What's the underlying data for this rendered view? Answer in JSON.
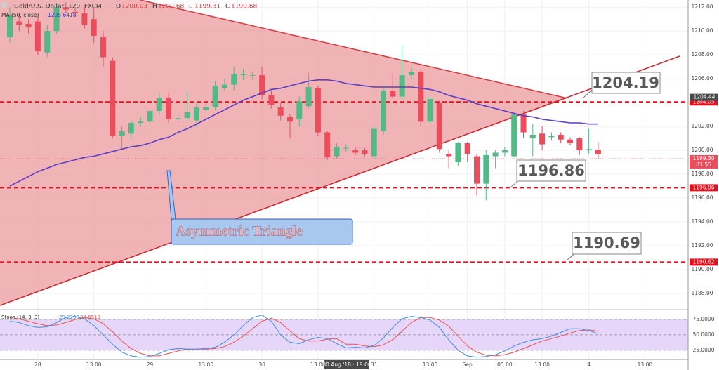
{
  "header": {
    "symbol": "Gold/U.S. Dollar, 120, FXCM",
    "ohlc": [
      {
        "key": "O",
        "value": "1200.03"
      },
      {
        "key": "H",
        "value": "1200.68"
      },
      {
        "key": "L",
        "value": "1199.31"
      },
      {
        "key": "C",
        "value": "1199.68"
      }
    ]
  },
  "chart_data": {
    "type": "candlestick",
    "categories": [
      null,
      null,
      null,
      "28",
      null,
      null,
      null,
      null,
      null,
      "13:00",
      null,
      null,
      null,
      null,
      null,
      "29",
      null,
      null,
      null,
      null,
      null,
      "13:00",
      null,
      null,
      null,
      null,
      null,
      "30",
      null,
      null,
      null,
      null,
      null,
      "13:00",
      null,
      null,
      null,
      null,
      null,
      "31",
      null,
      null,
      null,
      null,
      null,
      "13:00",
      null,
      null,
      null,
      "Sep",
      null,
      null,
      null,
      "05:00",
      null,
      null,
      null,
      "13:00",
      null,
      null,
      null,
      null,
      "4",
      null,
      null,
      null,
      null,
      null,
      "13:00"
    ],
    "open": [
      1209.5,
      1210.8,
      1210.6,
      1210.8,
      1208.2,
      1210,
      1212,
      1211.6,
      1211.5,
      1211,
      1209.5,
      1207.5,
      1201.2,
      1201.4,
      1202.3,
      1202.4,
      1203.3,
      1204.4,
      1202.6,
      1202.7,
      1202.5,
      1203.4,
      1203.6,
      1205.2,
      1205.5,
      1206.3,
      1206.3,
      1206.3,
      1204.6,
      1203.6,
      1202.8,
      1202.6,
      1203.7,
      1205.2,
      1201.5,
      1199.5,
      1200.2,
      1200,
      1200,
      1199.5,
      1201.6,
      1205,
      1204.5,
      1206.3,
      1206.6,
      1202.4,
      1204,
      1199.7,
      1199,
      1200.6,
      1199.5,
      1197.2,
      1199.5,
      1199.8,
      1199.5,
      1203,
      1201,
      1201.4,
      1201.1,
      1201.3,
      1200.9,
      1201,
      1200.1,
      1200.03,
      null,
      null,
      null,
      null,
      null
    ],
    "high": [
      1212,
      1211.5,
      1211,
      1211.2,
      1210.5,
      1212.3,
      1212.4,
      1212,
      1212,
      1212,
      1210,
      1207.8,
      1202,
      1202.5,
      1202.8,
      1204,
      1204.8,
      1204.8,
      1203,
      1205,
      1204,
      1204,
      1205.8,
      1206,
      1207,
      1206.8,
      1206.6,
      1207,
      1205,
      1204,
      1203,
      1204.5,
      1206.5,
      1205.4,
      1201.6,
      1200.6,
      1200.5,
      1200.3,
      1200.2,
      1202,
      1205.4,
      1206.5,
      1208.8,
      1207,
      1206.8,
      1204.5,
      1204.2,
      1200,
      1200.7,
      1200.7,
      1199.7,
      1200,
      1200,
      1200.3,
      1203.2,
      1203.3,
      1202.2,
      1202,
      1201.5,
      1201.5,
      1201.1,
      1201.1,
      1201.8,
      1200.68,
      null,
      null,
      null,
      null,
      null
    ],
    "low": [
      1209,
      1210,
      1209.8,
      1208,
      1207.8,
      1209.8,
      1211.5,
      1211.2,
      1210.2,
      1209,
      1207,
      1201,
      1200,
      1201,
      1202,
      1202,
      1203,
      1202.3,
      1202.3,
      1202.4,
      1202,
      1203,
      1203.4,
      1205,
      1205,
      1205.9,
      1205.9,
      1204.3,
      1203.5,
      1202.5,
      1201,
      1202,
      1203.5,
      1201.2,
      1199.2,
      1199.3,
      1199.9,
      1199.6,
      1199.5,
      1199.3,
      1201.3,
      1204.3,
      1204.3,
      1206,
      1202,
      1202.3,
      1199.8,
      1198.5,
      1198.7,
      1199,
      1196.2,
      1195.8,
      1198.5,
      1199.5,
      1199.4,
      1201,
      1199.5,
      1200,
      1200.8,
      1200.6,
      1200.4,
      1199.6,
      1199.7,
      1199.31,
      null,
      null,
      null,
      null,
      null
    ],
    "close": [
      1211.3,
      1210.5,
      1210.3,
      1208.3,
      1210,
      1212,
      1211.8,
      1211.5,
      1210.5,
      1209.6,
      1207.8,
      1201.2,
      1201.6,
      1202.3,
      1202.4,
      1203.3,
      1204.4,
      1202.6,
      1202.7,
      1203.2,
      1203.6,
      1203.6,
      1205.4,
      1205.5,
      1206.4,
      1206.4,
      1206.3,
      1204.6,
      1203.8,
      1202.9,
      1202.4,
      1204.1,
      1205.3,
      1201.5,
      1199.4,
      1200.3,
      1200.2,
      1199.8,
      1199.7,
      1201.8,
      1205,
      1204.5,
      1206.3,
      1206.6,
      1202.4,
      1204.3,
      1200.1,
      1199.5,
      1200.6,
      1199.7,
      1197.2,
      1199.6,
      1199.8,
      1200,
      1203,
      1201.5,
      1201.3,
      1200.5,
      1201.2,
      1200.9,
      1200.6,
      1200,
      1200.1,
      1199.68,
      null,
      null,
      null,
      null,
      null
    ],
    "up_color": "#53b987",
    "down_color": "#eb4d5c",
    "ma": {
      "name": "MA (50, close)",
      "value_label": "1205.6418",
      "color": "#5b3fc4",
      "values": [
        1197.0,
        1197.4,
        1197.8,
        1198.2,
        1198.5,
        1198.8,
        1199.0,
        1199.2,
        1199.4,
        1199.5,
        1199.7,
        1199.9,
        1200.1,
        1200.3,
        1200.4,
        1200.6,
        1200.9,
        1201.1,
        1201.5,
        1201.8,
        1202.2,
        1202.6,
        1203.0,
        1203.4,
        1203.8,
        1204.2,
        1204.5,
        1204.8,
        1205.1,
        1205.2,
        1205.4,
        1205.6,
        1205.8,
        1205.9,
        1205.9,
        1205.8,
        1205.6,
        1205.5,
        1205.4,
        1205.3,
        1205.3,
        1205.3,
        1205.3,
        1205.3,
        1205.2,
        1205.1,
        1204.9,
        1204.6,
        1204.4,
        1204.2,
        1203.9,
        1203.7,
        1203.5,
        1203.3,
        1203.1,
        1202.9,
        1202.8,
        1202.6,
        1202.5,
        1202.4,
        1202.3,
        1202.3,
        1202.2,
        1202.2,
        null,
        null,
        null,
        null,
        null
      ]
    },
    "ylim": [
      1186.7,
      1212.6
    ],
    "yticks": [
      {
        "value": 1212,
        "label": "1212.00"
      },
      {
        "value": 1210,
        "label": "1210.00"
      },
      {
        "value": 1208,
        "label": "1208.00"
      },
      {
        "value": 1206,
        "label": "1206.00"
      },
      {
        "value": 1202,
        "label": "1202.00"
      },
      {
        "value": 1200,
        "label": "1200.00"
      },
      {
        "value": 1198,
        "label": "1198.00"
      },
      {
        "value": 1196,
        "label": "1196.00"
      },
      {
        "value": 1194,
        "label": "1194.00"
      },
      {
        "value": 1192,
        "label": "1192.00"
      },
      {
        "value": 1190,
        "label": "1190.00"
      },
      {
        "value": 1188,
        "label": "1188.00"
      }
    ],
    "levels": [
      1204.05,
      1196.86,
      1190.62
    ],
    "level_color": "#e0121f",
    "last_price": {
      "value": 1199.3,
      "label": "1199.30",
      "countdown": "03:55"
    },
    "crosshair": {
      "price": 1204.44,
      "time": "30 Aug '18 · 19:00"
    },
    "callouts": [
      "1204.19",
      "1196.86",
      "1190.69"
    ],
    "pattern_label": "Asymmetric Triangle",
    "stochastic": {
      "title": "Stoch (14, 3, 3)",
      "k_label": "29.2263",
      "d_label": "34.6519",
      "k_color": "#3d8de0",
      "d_color": "#ee5050",
      "k": [
        72,
        70,
        65,
        62,
        63,
        70,
        78,
        80,
        76,
        65,
        50,
        35,
        22,
        16,
        14,
        15,
        20,
        26,
        28,
        27,
        27,
        28,
        30,
        38,
        50,
        65,
        78,
        82,
        72,
        50,
        38,
        36,
        42,
        46,
        44,
        36,
        29,
        30,
        29,
        33,
        45,
        62,
        76,
        80,
        78,
        74,
        62,
        42,
        25,
        16,
        14,
        15,
        18,
        24,
        32,
        38,
        42,
        44,
        48,
        54,
        60,
        60,
        57,
        52,
        null,
        null,
        null,
        null,
        null
      ],
      "d": [
        78,
        76,
        72,
        68,
        65,
        66,
        70,
        75,
        78,
        76,
        68,
        55,
        40,
        28,
        20,
        16,
        16,
        20,
        24,
        27,
        27,
        27,
        28,
        31,
        38,
        48,
        60,
        72,
        77,
        70,
        56,
        44,
        40,
        40,
        43,
        44,
        35,
        35,
        32,
        31,
        34,
        42,
        56,
        70,
        78,
        78,
        74,
        64,
        48,
        32,
        22,
        17,
        16,
        18,
        22,
        28,
        34,
        40,
        44,
        48,
        53,
        57,
        58,
        56,
        null,
        null,
        null,
        null,
        null
      ],
      "ylim": [
        12.5,
        88.6
      ],
      "yticks": [
        {
          "value": 75,
          "label": "75.0000"
        },
        {
          "value": 50,
          "label": "50.0000"
        },
        {
          "value": 25,
          "label": "25.0000"
        }
      ]
    }
  }
}
